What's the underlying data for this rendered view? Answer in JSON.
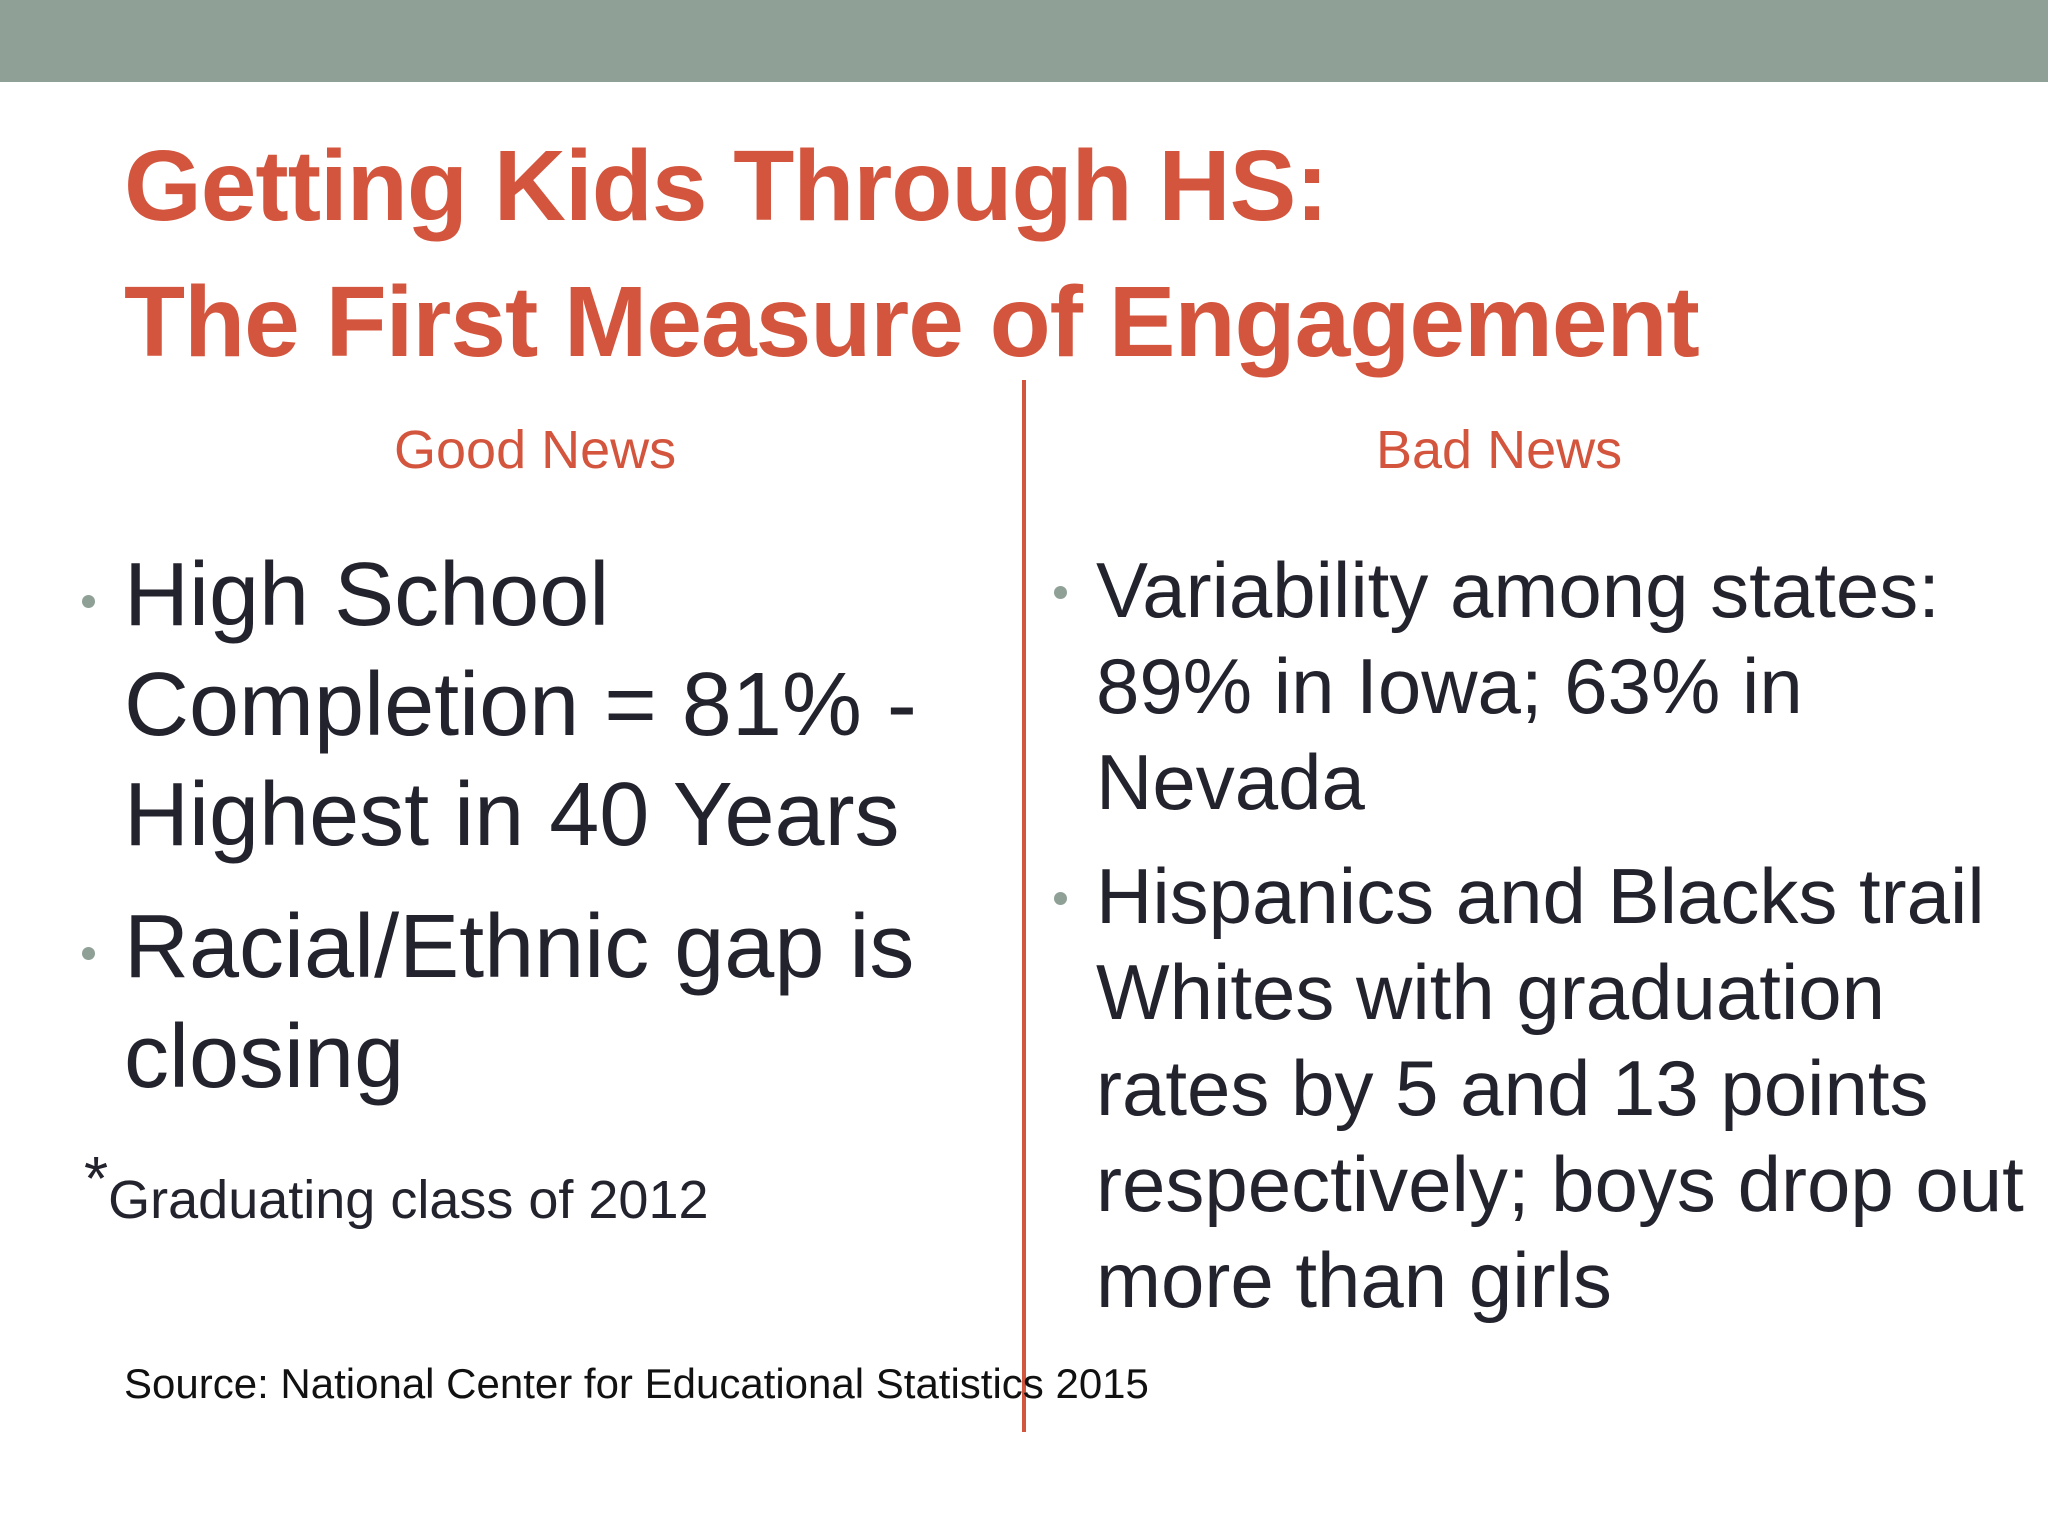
{
  "slide": {
    "title_line1": "Getting Kids Through HS:",
    "title_line2": "The First Measure of Engagement",
    "colors": {
      "accent": "#d4553d",
      "top_bar": "#8fa197",
      "bullet": "#8fa197",
      "body_text": "#23232e"
    }
  },
  "good_news": {
    "heading": "Good News",
    "bullets": [
      "High School Completion = 81% - Highest in 40 Years",
      "Racial/Ethnic gap is closing"
    ],
    "footnote_marker": "*",
    "footnote": "Graduating class of 2012"
  },
  "bad_news": {
    "heading": "Bad News",
    "bullets": [
      "Variability among states: 89% in Iowa; 63% in Nevada",
      "Hispanics and Blacks trail Whites with graduation rates by 5 and 13 points respectively; boys drop out more than girls"
    ]
  },
  "source": "Source: National Center for Educational Statistics 2015"
}
